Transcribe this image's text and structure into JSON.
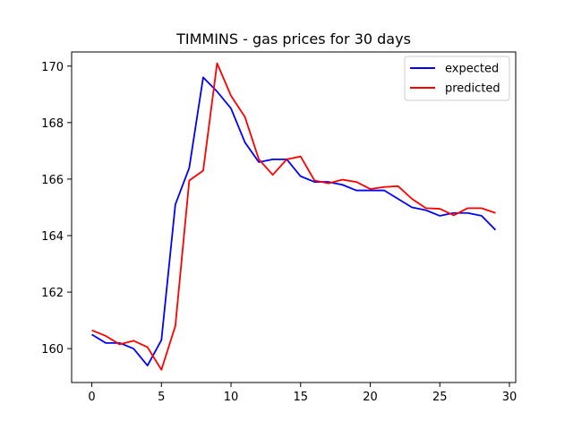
{
  "chart_data": {
    "type": "line",
    "title": "TIMMINS - gas prices for 30 days",
    "xlabel": "",
    "ylabel": "",
    "xlim": [
      -1.45,
      30.45
    ],
    "ylim": [
      158.8,
      170.5
    ],
    "x_ticks": [
      0,
      5,
      10,
      15,
      20,
      25,
      30
    ],
    "y_ticks": [
      160,
      162,
      164,
      166,
      168,
      170
    ],
    "grid": false,
    "legend_position": "top-right",
    "x": [
      0,
      1,
      2,
      3,
      4,
      5,
      6,
      7,
      8,
      9,
      10,
      11,
      12,
      13,
      14,
      15,
      16,
      17,
      18,
      19,
      20,
      21,
      22,
      23,
      24,
      25,
      26,
      27,
      28,
      29
    ],
    "series": [
      {
        "name": "expected",
        "color": "#0000ff",
        "values": [
          160.5,
          160.2,
          160.2,
          160.0,
          159.4,
          160.3,
          165.1,
          166.4,
          169.6,
          169.1,
          168.5,
          167.3,
          166.6,
          166.7,
          166.7,
          166.1,
          165.9,
          165.9,
          165.8,
          165.6,
          165.6,
          165.6,
          165.3,
          165.0,
          164.9,
          164.7,
          164.8,
          164.8,
          164.7,
          164.2
        ]
      },
      {
        "name": "predicted",
        "color": "#ff0000",
        "values": [
          160.65,
          160.45,
          160.15,
          160.28,
          160.05,
          159.25,
          160.8,
          165.95,
          166.3,
          170.1,
          168.95,
          168.2,
          166.7,
          166.15,
          166.7,
          166.8,
          165.95,
          165.85,
          165.98,
          165.9,
          165.65,
          165.72,
          165.75,
          165.3,
          164.97,
          164.95,
          164.72,
          164.97,
          164.97,
          164.8
        ]
      }
    ]
  }
}
